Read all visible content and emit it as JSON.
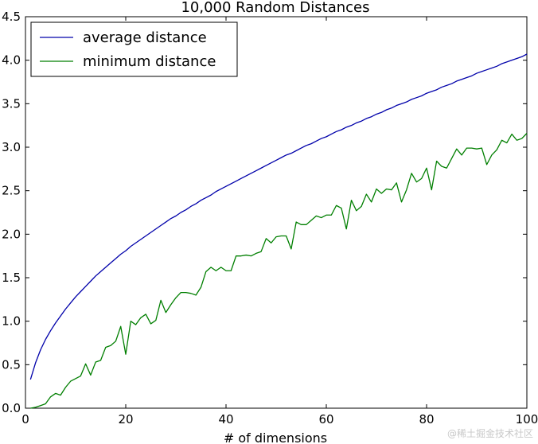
{
  "watermark": "@稀土掘金技术社区",
  "chart_data": {
    "type": "line",
    "title": "10,000 Random Distances",
    "xlabel": "# of dimensions",
    "ylabel": "",
    "xlim": [
      0,
      100
    ],
    "ylim": [
      0.0,
      4.5
    ],
    "xticks": [
      0,
      20,
      40,
      60,
      80,
      100
    ],
    "yticks": [
      0.0,
      0.5,
      1.0,
      1.5,
      2.0,
      2.5,
      3.0,
      3.5,
      4.0,
      4.5
    ],
    "ytick_labels": [
      "0.0",
      "0.5",
      "1.0",
      "1.5",
      "2.0",
      "2.5",
      "3.0",
      "3.5",
      "4.0",
      "4.5"
    ],
    "grid": false,
    "legend_position": "top-left",
    "x": [
      1,
      2,
      3,
      4,
      5,
      6,
      7,
      8,
      9,
      10,
      11,
      12,
      13,
      14,
      15,
      16,
      17,
      18,
      19,
      20,
      21,
      22,
      23,
      24,
      25,
      26,
      27,
      28,
      29,
      30,
      31,
      32,
      33,
      34,
      35,
      36,
      37,
      38,
      39,
      40,
      41,
      42,
      43,
      44,
      45,
      46,
      47,
      48,
      49,
      50,
      51,
      52,
      53,
      54,
      55,
      56,
      57,
      58,
      59,
      60,
      61,
      62,
      63,
      64,
      65,
      66,
      67,
      68,
      69,
      70,
      71,
      72,
      73,
      74,
      75,
      76,
      77,
      78,
      79,
      80,
      81,
      82,
      83,
      84,
      85,
      86,
      87,
      88,
      89,
      90,
      91,
      92,
      93,
      94,
      95,
      96,
      97,
      98,
      99,
      100
    ],
    "series": [
      {
        "name": "average distance",
        "color": "#0000aa",
        "values": [
          0.33,
          0.52,
          0.67,
          0.79,
          0.89,
          0.98,
          1.06,
          1.14,
          1.21,
          1.28,
          1.34,
          1.4,
          1.46,
          1.52,
          1.57,
          1.62,
          1.67,
          1.72,
          1.77,
          1.81,
          1.86,
          1.9,
          1.94,
          1.98,
          2.02,
          2.06,
          2.1,
          2.14,
          2.18,
          2.21,
          2.25,
          2.28,
          2.32,
          2.35,
          2.39,
          2.42,
          2.45,
          2.49,
          2.52,
          2.55,
          2.58,
          2.61,
          2.64,
          2.67,
          2.7,
          2.73,
          2.76,
          2.79,
          2.82,
          2.85,
          2.88,
          2.91,
          2.93,
          2.96,
          2.99,
          3.02,
          3.04,
          3.07,
          3.1,
          3.12,
          3.15,
          3.18,
          3.2,
          3.23,
          3.25,
          3.28,
          3.3,
          3.33,
          3.35,
          3.38,
          3.4,
          3.43,
          3.45,
          3.48,
          3.5,
          3.52,
          3.55,
          3.57,
          3.59,
          3.62,
          3.64,
          3.66,
          3.69,
          3.71,
          3.73,
          3.76,
          3.78,
          3.8,
          3.82,
          3.85,
          3.87,
          3.89,
          3.91,
          3.93,
          3.96,
          3.98,
          4.0,
          4.02,
          4.04,
          4.07
        ]
      },
      {
        "name": "minimum distance",
        "color": "#007f00",
        "values": [
          0.0,
          0.01,
          0.03,
          0.05,
          0.13,
          0.17,
          0.15,
          0.24,
          0.31,
          0.34,
          0.37,
          0.51,
          0.38,
          0.53,
          0.55,
          0.7,
          0.72,
          0.77,
          0.94,
          0.62,
          1.0,
          0.96,
          1.04,
          1.08,
          0.97,
          1.01,
          1.24,
          1.1,
          1.19,
          1.27,
          1.33,
          1.33,
          1.32,
          1.3,
          1.39,
          1.57,
          1.62,
          1.58,
          1.62,
          1.58,
          1.58,
          1.75,
          1.75,
          1.76,
          1.75,
          1.78,
          1.8,
          1.95,
          1.9,
          1.97,
          1.98,
          1.98,
          1.83,
          2.14,
          2.11,
          2.11,
          2.16,
          2.21,
          2.19,
          2.22,
          2.22,
          2.33,
          2.3,
          2.06,
          2.39,
          2.27,
          2.32,
          2.46,
          2.37,
          2.52,
          2.47,
          2.52,
          2.51,
          2.59,
          2.37,
          2.51,
          2.7,
          2.6,
          2.64,
          2.76,
          2.51,
          2.84,
          2.78,
          2.76,
          2.87,
          2.98,
          2.91,
          2.99,
          2.99,
          2.98,
          2.99,
          2.8,
          2.91,
          2.97,
          3.08,
          3.05,
          3.15,
          3.08,
          3.1,
          3.16
        ]
      }
    ]
  }
}
